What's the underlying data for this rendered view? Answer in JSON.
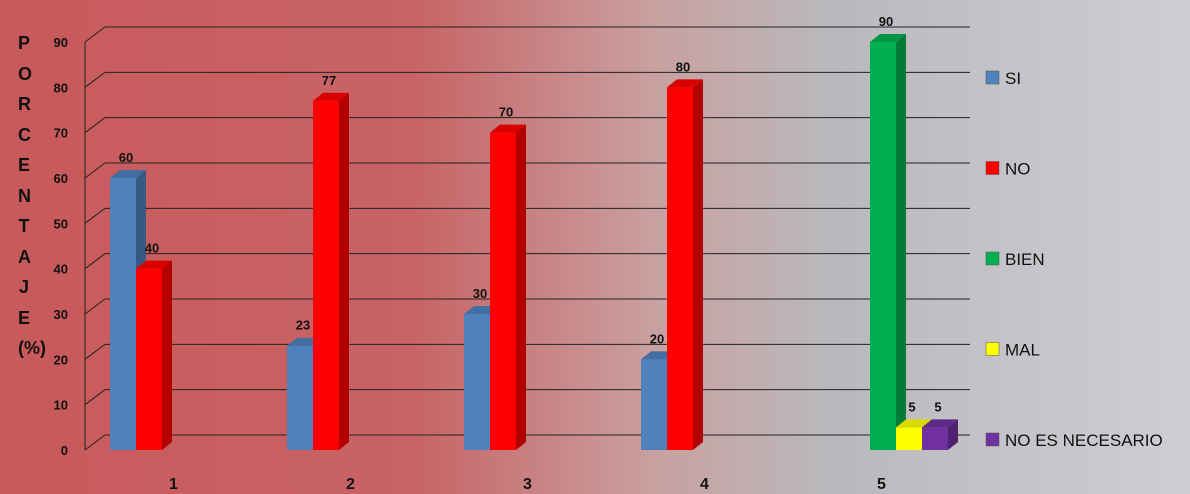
{
  "chart_data": {
    "type": "bar3d",
    "y_label": "PORCENTAJE (%)",
    "categories": [
      "1",
      "2",
      "3",
      "4",
      "5"
    ],
    "series": [
      {
        "name": "SI",
        "color": "#4f81bd",
        "values": [
          60,
          23,
          30,
          20,
          null
        ]
      },
      {
        "name": "NO",
        "color": "#ff0000",
        "values": [
          40,
          77,
          70,
          80,
          null
        ]
      },
      {
        "name": "BIEN",
        "color": "#00b050",
        "values": [
          null,
          null,
          null,
          null,
          90
        ]
      },
      {
        "name": "MAL",
        "color": "#ffff00",
        "values": [
          null,
          null,
          null,
          null,
          5
        ]
      },
      {
        "name": "NO ES NECESARIO",
        "color": "#7030a0",
        "values": [
          null,
          null,
          null,
          null,
          5
        ]
      }
    ],
    "ylim": [
      0,
      90
    ],
    "yticks": [
      0,
      10,
      20,
      30,
      40,
      50,
      60,
      70,
      80,
      90
    ],
    "grid": true,
    "legend": "right"
  }
}
